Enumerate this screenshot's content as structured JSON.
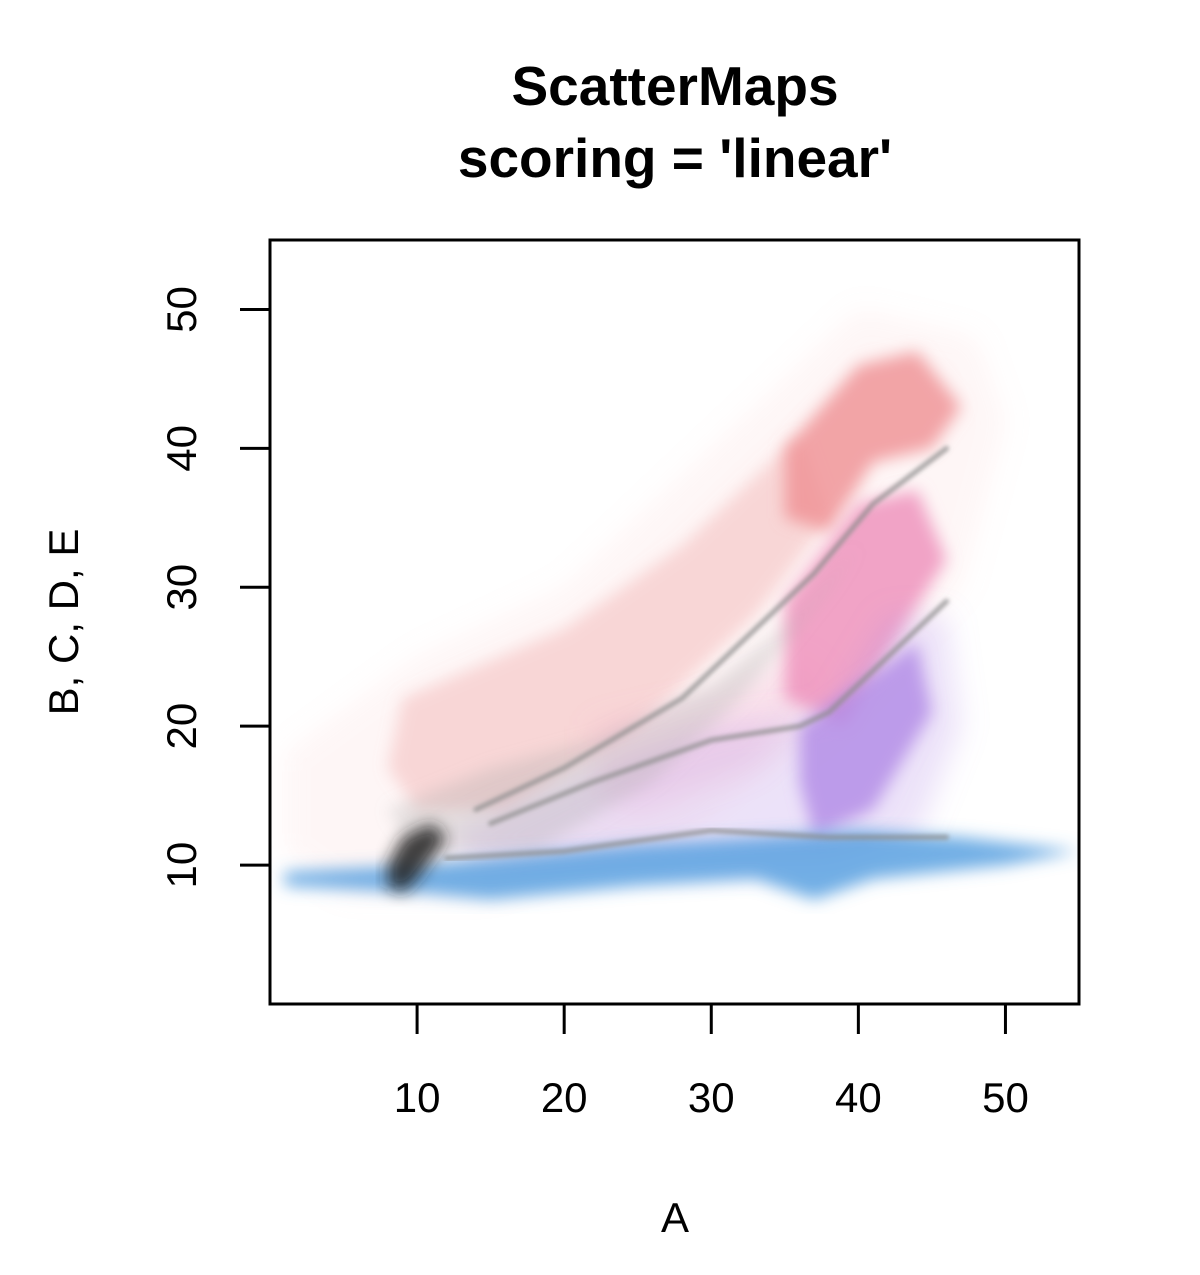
{
  "chart_data": {
    "type": "scatter",
    "title": "ScatterMaps",
    "subtitle": "scoring = 'linear'",
    "xlabel": "A",
    "ylabel": "B, C, D, E",
    "xlim": [
      0,
      55
    ],
    "ylim": [
      0,
      55
    ],
    "xticks": [
      10,
      20,
      30,
      40,
      50
    ],
    "yticks": [
      10,
      20,
      30,
      40,
      50
    ],
    "grid": false,
    "colors": {
      "red": "#f08c8c",
      "pink": "#ec8cbc",
      "purple": "#b48ce6",
      "blue": "#3c96dc",
      "overlap": "#8c8c8c",
      "dense": "#1e1e1e"
    },
    "density_regions": [
      {
        "color": "#f4a8a8",
        "opacity": 0.1,
        "points": [
          [
            1,
            18
          ],
          [
            10,
            25
          ],
          [
            20,
            30
          ],
          [
            30,
            40
          ],
          [
            40,
            50
          ],
          [
            48,
            48
          ],
          [
            50,
            42
          ],
          [
            47,
            30
          ],
          [
            38,
            20
          ],
          [
            28,
            12
          ],
          [
            15,
            8
          ],
          [
            5,
            8
          ],
          [
            1,
            11
          ]
        ]
      },
      {
        "color": "#ef9a9a",
        "opacity": 0.35,
        "points": [
          [
            9,
            22
          ],
          [
            20,
            27
          ],
          [
            28,
            33
          ],
          [
            33,
            38
          ],
          [
            36,
            41
          ],
          [
            38,
            35
          ],
          [
            33,
            28
          ],
          [
            25,
            20
          ],
          [
            16,
            14
          ],
          [
            10,
            14
          ],
          [
            8,
            17
          ]
        ]
      },
      {
        "color": "#ef8f92",
        "opacity": 0.8,
        "points": [
          [
            35,
            40
          ],
          [
            40,
            46
          ],
          [
            44,
            47
          ],
          [
            47,
            43
          ],
          [
            45,
            40
          ],
          [
            41,
            39
          ],
          [
            38,
            34
          ],
          [
            35,
            35
          ]
        ]
      },
      {
        "color": "#ec8cbc",
        "opacity": 0.2,
        "points": [
          [
            22,
            20
          ],
          [
            30,
            22
          ],
          [
            36,
            25
          ],
          [
            38,
            23
          ],
          [
            33,
            17
          ],
          [
            25,
            14
          ],
          [
            22,
            15
          ]
        ]
      },
      {
        "color": "#ee8dba",
        "opacity": 0.8,
        "points": [
          [
            35,
            29
          ],
          [
            40,
            36
          ],
          [
            44,
            37
          ],
          [
            46,
            32
          ],
          [
            43,
            27
          ],
          [
            39,
            20
          ],
          [
            35,
            22
          ]
        ]
      },
      {
        "color": "#b48ce6",
        "opacity": 0.25,
        "points": [
          [
            12,
            12
          ],
          [
            20,
            16
          ],
          [
            30,
            20
          ],
          [
            38,
            21
          ],
          [
            42,
            28
          ],
          [
            46,
            28
          ],
          [
            47,
            20
          ],
          [
            44,
            12
          ],
          [
            38,
            10
          ],
          [
            25,
            10
          ],
          [
            14,
            10
          ]
        ]
      },
      {
        "color": "#b08ae6",
        "opacity": 0.8,
        "points": [
          [
            36,
            20
          ],
          [
            40,
            23
          ],
          [
            44,
            26
          ],
          [
            45,
            21
          ],
          [
            41,
            14
          ],
          [
            37,
            12
          ],
          [
            36,
            16
          ]
        ]
      },
      {
        "color": "#a8a8a8",
        "opacity": 0.3,
        "points": [
          [
            8,
            14
          ],
          [
            15,
            17
          ],
          [
            22,
            19
          ],
          [
            30,
            23
          ],
          [
            36,
            28
          ],
          [
            40,
            33
          ],
          [
            38,
            30
          ],
          [
            32,
            22
          ],
          [
            26,
            16
          ],
          [
            18,
            11
          ],
          [
            10,
            11
          ]
        ]
      },
      {
        "color": "#4f9bde",
        "opacity": 0.8,
        "points": [
          [
            1,
            9.5
          ],
          [
            10,
            10
          ],
          [
            25,
            11.5
          ],
          [
            33,
            12
          ],
          [
            40,
            12.5
          ],
          [
            47,
            12
          ],
          [
            55,
            11
          ],
          [
            50,
            10
          ],
          [
            41,
            9
          ],
          [
            37,
            7.5
          ],
          [
            33,
            9
          ],
          [
            25,
            8.5
          ],
          [
            15,
            7.5
          ],
          [
            10,
            8
          ],
          [
            1,
            8.5
          ]
        ]
      },
      {
        "color": "#1e1e1e",
        "opacity": 0.85,
        "points": [
          [
            8,
            10
          ],
          [
            9,
            12
          ],
          [
            11,
            13
          ],
          [
            12,
            12
          ],
          [
            10,
            9
          ],
          [
            9,
            8
          ],
          [
            8,
            8.5
          ]
        ]
      }
    ],
    "boundaries": [
      {
        "color": "#8c8c8c",
        "points": [
          [
            12,
            10.5
          ],
          [
            20,
            11
          ],
          [
            30,
            12.5
          ],
          [
            38,
            12
          ],
          [
            46,
            12
          ]
        ]
      },
      {
        "color": "#8c8c8c",
        "points": [
          [
            15,
            13
          ],
          [
            22,
            16
          ],
          [
            30,
            19
          ],
          [
            36,
            20
          ],
          [
            38,
            21
          ],
          [
            42,
            25
          ],
          [
            46,
            29
          ]
        ]
      },
      {
        "color": "#8c8c8c",
        "points": [
          [
            14,
            14
          ],
          [
            20,
            17
          ],
          [
            28,
            22
          ],
          [
            33,
            27
          ],
          [
            37,
            31
          ],
          [
            41,
            36
          ],
          [
            46,
            40
          ]
        ]
      }
    ]
  }
}
